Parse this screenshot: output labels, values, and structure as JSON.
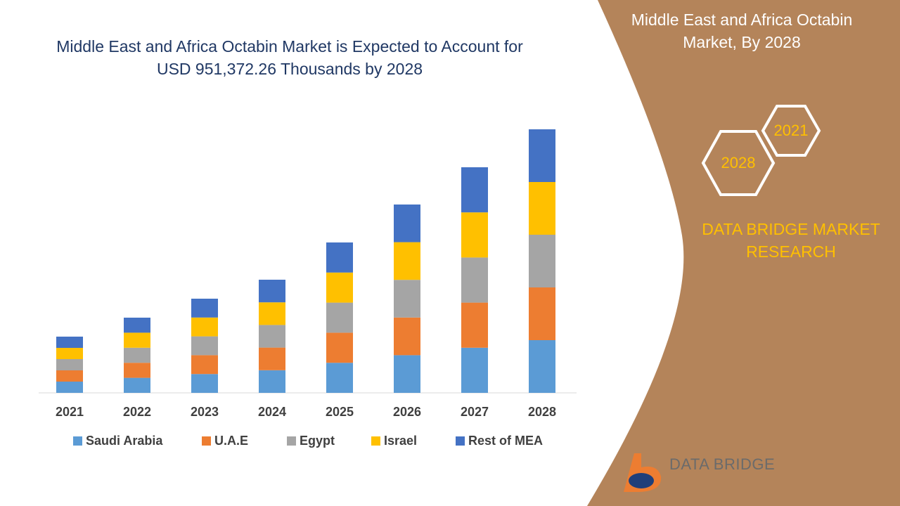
{
  "chart_data": {
    "type": "stacked-bar",
    "title": "Middle East and Africa Octabin Market is Expected to Account for USD 951,372.26 Thousands by 2028",
    "categories": [
      "2021",
      "2022",
      "2023",
      "2024",
      "2025",
      "2026",
      "2027",
      "2028"
    ],
    "series": [
      {
        "name": "Saudi Arabia",
        "color": "#5b9bd5",
        "values": [
          16,
          21.4,
          26.8,
          32.2,
          42.8,
          53.6,
          64.2,
          75
        ]
      },
      {
        "name": "U.A.E",
        "color": "#ed7d31",
        "values": [
          16,
          21.4,
          26.8,
          32.2,
          42.8,
          53.6,
          64.2,
          75
        ]
      },
      {
        "name": "Egypt",
        "color": "#a5a5a5",
        "values": [
          16,
          21.4,
          26.8,
          32.2,
          42.8,
          53.6,
          64.2,
          75
        ]
      },
      {
        "name": "Israel",
        "color": "#ffc000",
        "values": [
          16,
          21.4,
          26.8,
          32.2,
          42.8,
          53.6,
          64.2,
          75
        ]
      },
      {
        "name": "Rest of MEA",
        "color": "#4472c4",
        "values": [
          16,
          21.4,
          26.8,
          32.2,
          42.8,
          53.6,
          64.2,
          75
        ]
      }
    ],
    "legend": "bottom"
  },
  "panel": {
    "title": "Middle East and Africa Octabin Market, By 2028",
    "hex_small": "2021",
    "hex_large": "2028",
    "brand": "DATA BRIDGE MARKET RESEARCH",
    "logo": "DATA BRIDGE"
  }
}
